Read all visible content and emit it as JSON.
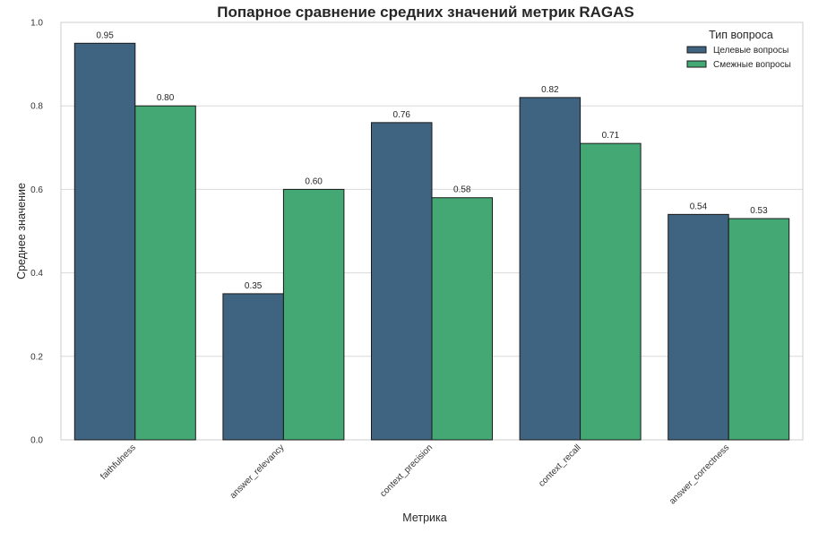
{
  "chart_data": {
    "type": "bar",
    "title": "Попарное сравнение средних значений метрик RAGAS",
    "xlabel": "Метрика",
    "ylabel": "Среднее значение",
    "categories": [
      "faithfulness",
      "answer_relevancy",
      "context_precision",
      "context_recall",
      "answer_correctness"
    ],
    "series": [
      {
        "name": "Целевые вопросы",
        "color": "#3e6482",
        "values": [
          0.95,
          0.35,
          0.76,
          0.82,
          0.54
        ],
        "labels": [
          "0.95",
          "0.35",
          "0.76",
          "0.82",
          "0.54"
        ]
      },
      {
        "name": "Смежные вопросы",
        "color": "#44a874",
        "values": [
          0.8,
          0.6,
          0.58,
          0.71,
          0.53
        ],
        "labels": [
          "0.80",
          "0.60",
          "0.58",
          "0.71",
          "0.53"
        ]
      }
    ],
    "ylim": [
      0,
      1.0
    ],
    "yticks": [
      "0.0",
      "0.2",
      "0.4",
      "0.6",
      "0.8",
      "1.0"
    ],
    "grid": "horizontal",
    "legend": {
      "title": "Тип вопроса",
      "position": "upper right"
    }
  }
}
